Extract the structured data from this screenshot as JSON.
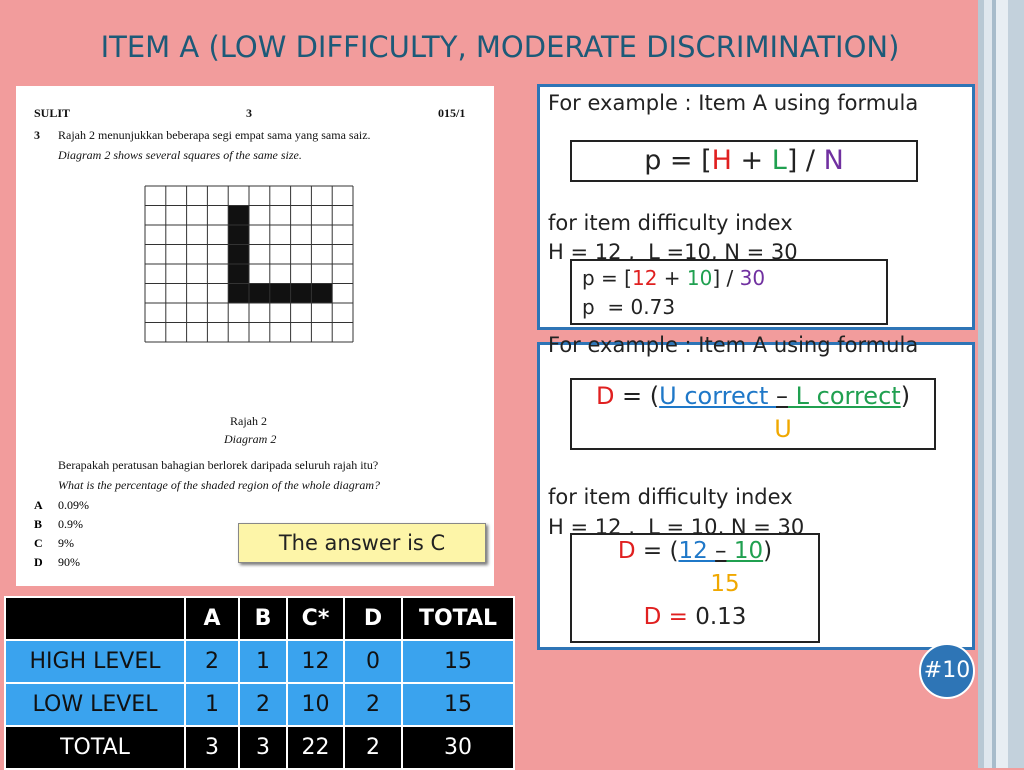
{
  "title": "ITEM A (LOW DIFFICULTY, MODERATE DISCRIMINATION)",
  "exam": {
    "header": [
      "SULIT",
      "3",
      "015/1"
    ],
    "question_number": "3",
    "text_ms": "Rajah 2 menunjukkan beberapa segi empat sama yang sama saiz.",
    "text_en": "Diagram 2 shows several squares of the same size.",
    "diagram_ms": "Rajah 2",
    "diagram_en": "Diagram 2",
    "question_ms": "Berapakah peratusan bahagian berlorek daripada seluruh rajah itu?",
    "question_en": "What is the percentage of the shaded region of the whole diagram?",
    "options": [
      {
        "letter": "A",
        "text": "0.09%"
      },
      {
        "letter": "B",
        "text": "0.9%"
      },
      {
        "letter": "C",
        "text": "9%"
      },
      {
        "letter": "D",
        "text": "90%"
      }
    ]
  },
  "answer_note": "The answer is C",
  "difficulty": {
    "intro": "For example : Item A using formula",
    "formula": [
      "p = [",
      "H",
      " + ",
      "L",
      "] / ",
      "N"
    ],
    "caption": "for item difficulty index",
    "values": "H = 12 ,  L =10, N = 30",
    "calc": [
      "p = [",
      "12",
      " + ",
      "10",
      "] / ",
      "30"
    ],
    "result": "p  = 0.73"
  },
  "discrimination": {
    "intro": "For example : Item A using formula",
    "formula": [
      "D",
      " = (",
      "U correct ",
      "–",
      " L correct",
      ")"
    ],
    "denominator": "U",
    "caption": "for item difficulty index",
    "values": "H = 12 ,  L = 10, N = 30",
    "calc": [
      "D",
      " = (",
      "12 ",
      "–",
      " 10",
      ")"
    ],
    "calc_denominator": "15",
    "result": [
      "D = ",
      "0.13"
    ]
  },
  "table": {
    "header": [
      "A",
      "B",
      "C*",
      "D",
      "TOTAL"
    ],
    "rows": [
      [
        "HIGH LEVEL",
        2,
        1,
        12,
        0,
        15
      ],
      [
        "LOW LEVEL",
        1,
        2,
        10,
        2,
        15
      ],
      [
        "TOTAL",
        3,
        3,
        22,
        2,
        30
      ]
    ]
  },
  "slide_number": "#10"
}
